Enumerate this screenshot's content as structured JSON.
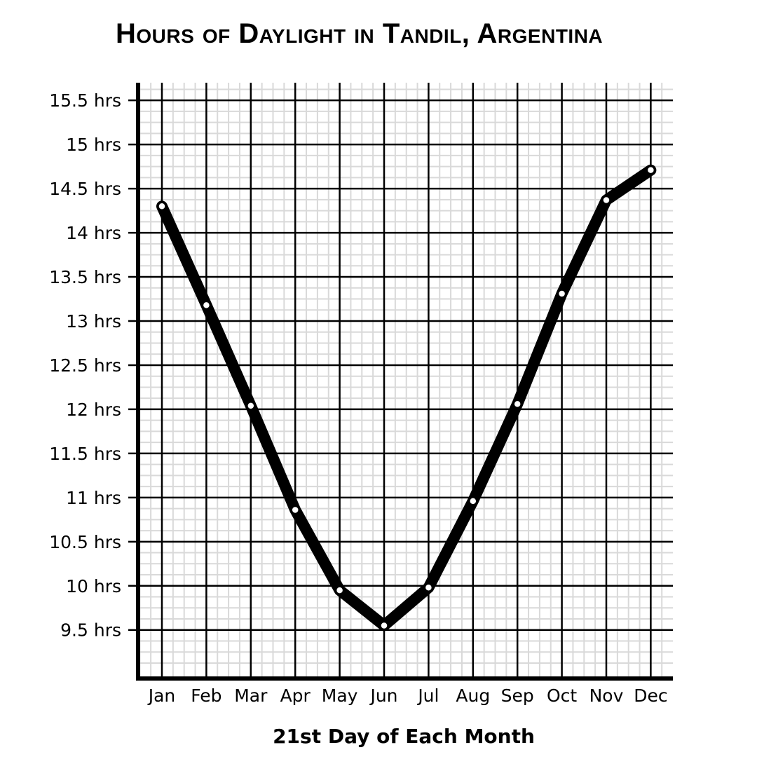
{
  "chart_data": {
    "type": "line",
    "title": "Hours of Daylight in Tandil, Argentina",
    "xlabel": "21st Day of Each Month",
    "ylabel": "",
    "categories": [
      "Jan",
      "Feb",
      "Mar",
      "Apr",
      "May",
      "Jun",
      "Jul",
      "Aug",
      "Sep",
      "Oct",
      "Nov",
      "Dec"
    ],
    "series": [
      {
        "values": [
          14.3,
          13.18,
          12.04,
          10.86,
          9.95,
          9.55,
          9.98,
          10.96,
          12.06,
          13.31,
          14.37,
          14.71
        ]
      }
    ],
    "y_tick_labels": [
      "9.5 hrs",
      "10 hrs",
      "10.5 hrs",
      "11 hrs",
      "11.5 hrs",
      "12 hrs",
      "12.5 hrs",
      "13 hrs",
      "13.5 hrs",
      "14 hrs",
      "14.5 hrs",
      "15 hrs",
      "15.5 hrs"
    ],
    "y_ticks": [
      9.5,
      10,
      10.5,
      11,
      11.5,
      12,
      12.5,
      13,
      13.5,
      14,
      14.5,
      15,
      15.5
    ],
    "ylim": [
      8.95,
      15.7
    ],
    "grid": true,
    "legend": "none",
    "line_color": "#000000",
    "marker_fill": "#ffffff"
  }
}
